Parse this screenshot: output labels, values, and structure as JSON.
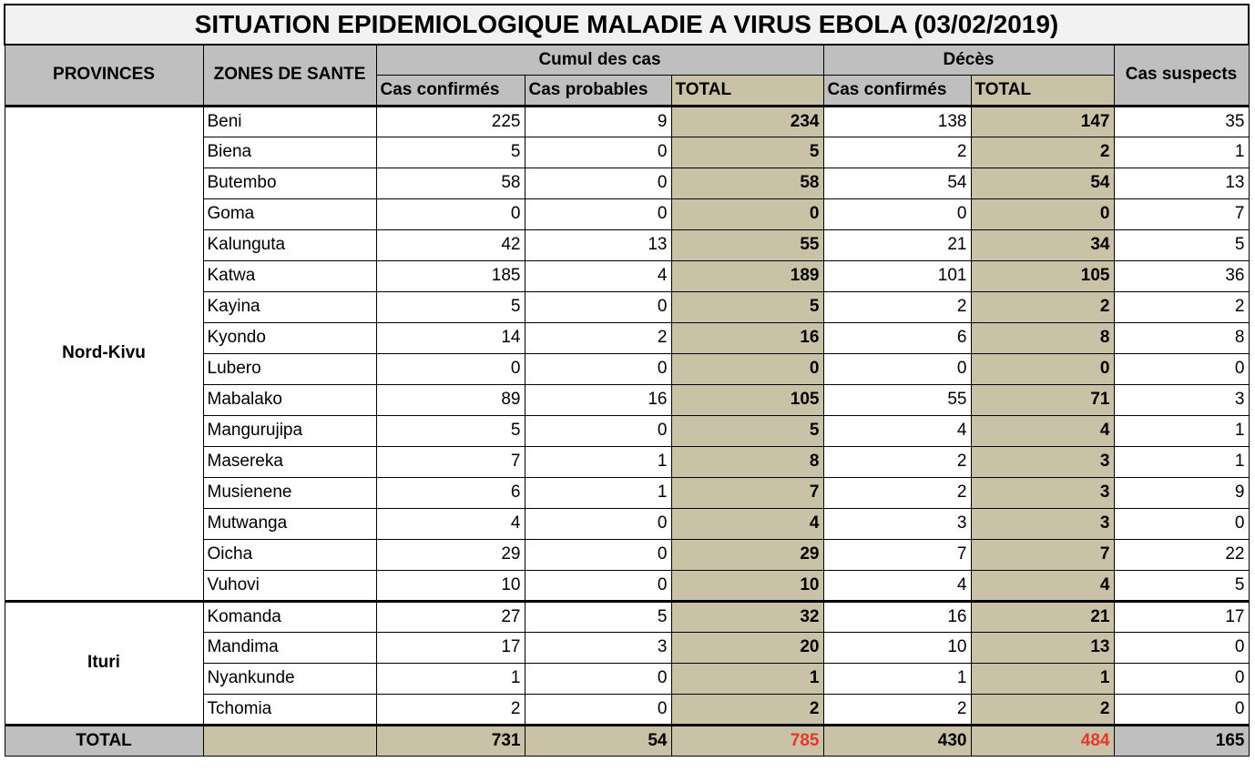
{
  "title": "SITUATION EPIDEMIOLOGIQUE MALADIE A VIRUS EBOLA (03/02/2019)",
  "headers": {
    "provinces": "PROVINCES",
    "zones": "ZONES DE SANTE",
    "cumul": "Cumul des cas",
    "deces": "Décès",
    "suspects": "Cas suspects",
    "cas_confirmes": "Cas confirmés",
    "cas_probables": "Cas probables",
    "total": "TOTAL",
    "deces_confirmes": "Cas confirmés",
    "deces_total": "TOTAL"
  },
  "provinces": [
    {
      "name": "Nord-Kivu",
      "rows": [
        {
          "zone": "Beni",
          "confirmes": "225",
          "probables": "9",
          "total": "234",
          "deces_confirmes": "138",
          "deces_total": "147",
          "suspects": "35"
        },
        {
          "zone": "Biena",
          "confirmes": "5",
          "probables": "0",
          "total": "5",
          "deces_confirmes": "2",
          "deces_total": "2",
          "suspects": "1"
        },
        {
          "zone": "Butembo",
          "confirmes": "58",
          "probables": "0",
          "total": "58",
          "deces_confirmes": "54",
          "deces_total": "54",
          "suspects": "13"
        },
        {
          "zone": "Goma",
          "confirmes": "0",
          "probables": "0",
          "total": "0",
          "deces_confirmes": "0",
          "deces_total": "0",
          "suspects": "7"
        },
        {
          "zone": "Kalunguta",
          "confirmes": "42",
          "probables": "13",
          "total": "55",
          "deces_confirmes": "21",
          "deces_total": "34",
          "suspects": "5"
        },
        {
          "zone": "Katwa",
          "confirmes": "185",
          "probables": "4",
          "total": "189",
          "deces_confirmes": "101",
          "deces_total": "105",
          "suspects": "36"
        },
        {
          "zone": "Kayina",
          "confirmes": "5",
          "probables": "0",
          "total": "5",
          "deces_confirmes": "2",
          "deces_total": "2",
          "suspects": "2"
        },
        {
          "zone": "Kyondo",
          "confirmes": "14",
          "probables": "2",
          "total": "16",
          "deces_confirmes": "6",
          "deces_total": "8",
          "suspects": "8"
        },
        {
          "zone": "Lubero",
          "confirmes": "0",
          "probables": "0",
          "total": "0",
          "deces_confirmes": "0",
          "deces_total": "0",
          "suspects": "0"
        },
        {
          "zone": "Mabalako",
          "confirmes": "89",
          "probables": "16",
          "total": "105",
          "deces_confirmes": "55",
          "deces_total": "71",
          "suspects": "3"
        },
        {
          "zone": "Mangurujipa",
          "confirmes": "5",
          "probables": "0",
          "total": "5",
          "deces_confirmes": "4",
          "deces_total": "4",
          "suspects": "1"
        },
        {
          "zone": "Masereka",
          "confirmes": "7",
          "probables": "1",
          "total": "8",
          "deces_confirmes": "2",
          "deces_total": "3",
          "suspects": "1"
        },
        {
          "zone": "Musienene",
          "confirmes": "6",
          "probables": "1",
          "total": "7",
          "deces_confirmes": "2",
          "deces_total": "3",
          "suspects": "9"
        },
        {
          "zone": "Mutwanga",
          "confirmes": "4",
          "probables": "0",
          "total": "4",
          "deces_confirmes": "3",
          "deces_total": "3",
          "suspects": "0"
        },
        {
          "zone": "Oicha",
          "confirmes": "29",
          "probables": "0",
          "total": "29",
          "deces_confirmes": "7",
          "deces_total": "7",
          "suspects": "22"
        },
        {
          "zone": "Vuhovi",
          "confirmes": "10",
          "probables": "0",
          "total": "10",
          "deces_confirmes": "4",
          "deces_total": "4",
          "suspects": "5"
        }
      ]
    },
    {
      "name": "Ituri",
      "rows": [
        {
          "zone": "Komanda",
          "confirmes": "27",
          "probables": "5",
          "total": "32",
          "deces_confirmes": "16",
          "deces_total": "21",
          "suspects": "17"
        },
        {
          "zone": "Mandima",
          "confirmes": "17",
          "probables": "3",
          "total": "20",
          "deces_confirmes": "10",
          "deces_total": "13",
          "suspects": "0"
        },
        {
          "zone": "Nyankunde",
          "confirmes": "1",
          "probables": "0",
          "total": "1",
          "deces_confirmes": "1",
          "deces_total": "1",
          "suspects": "0"
        },
        {
          "zone": "Tchomia",
          "confirmes": "2",
          "probables": "0",
          "total": "2",
          "deces_confirmes": "2",
          "deces_total": "2",
          "suspects": "0"
        }
      ]
    }
  ],
  "totals": {
    "label": "TOTAL",
    "confirmes": "731",
    "probables": "54",
    "total": "785",
    "deces_confirmes": "430",
    "deces_total": "484",
    "suspects": "165"
  },
  "colors": {
    "header_gray": "#bfbfbf",
    "total_tan": "#c9c2a6",
    "highlight_red": "#e8372c"
  }
}
